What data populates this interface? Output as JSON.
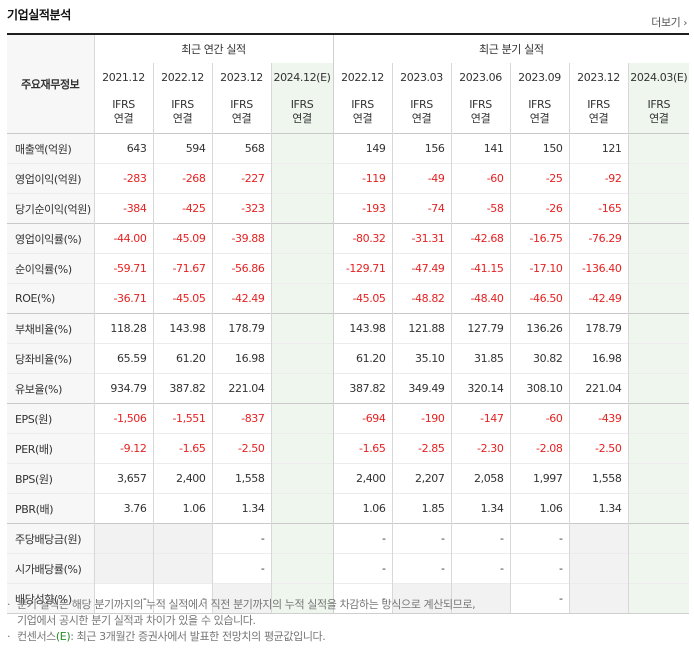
{
  "header": {
    "title": "기업실적분석",
    "more_label": "더보기"
  },
  "table": {
    "row_header_label": "주요재무정보",
    "group_labels": {
      "annual": "최근 연간 실적",
      "quarterly": "최근 분기 실적"
    },
    "annual_periods": [
      "2021.12",
      "2022.12",
      "2023.12",
      "2024.12(E)"
    ],
    "quarterly_periods": [
      "2022.12",
      "2023.03",
      "2023.06",
      "2023.09",
      "2023.12",
      "2024.03(E)"
    ],
    "ifrs_line1": "IFRS",
    "ifrs_line2": "연결",
    "rows": [
      {
        "label": "매출액(억원)",
        "annual": [
          "643",
          "594",
          "568",
          ""
        ],
        "quarterly": [
          "149",
          "156",
          "141",
          "150",
          "121",
          ""
        ]
      },
      {
        "label": "영업이익(억원)",
        "annual": [
          "-283",
          "-268",
          "-227",
          ""
        ],
        "quarterly": [
          "-119",
          "-49",
          "-60",
          "-25",
          "-92",
          ""
        ]
      },
      {
        "label": "당기순이익(억원)",
        "annual": [
          "-384",
          "-425",
          "-323",
          ""
        ],
        "quarterly": [
          "-193",
          "-74",
          "-58",
          "-26",
          "-165",
          ""
        ]
      },
      {
        "label": "영업이익률(%)",
        "annual": [
          "-44.00",
          "-45.09",
          "-39.88",
          ""
        ],
        "quarterly": [
          "-80.32",
          "-31.31",
          "-42.68",
          "-16.75",
          "-76.29",
          ""
        ]
      },
      {
        "label": "순이익률(%)",
        "annual": [
          "-59.71",
          "-71.67",
          "-56.86",
          ""
        ],
        "quarterly": [
          "-129.71",
          "-47.49",
          "-41.15",
          "-17.10",
          "-136.40",
          ""
        ]
      },
      {
        "label": "ROE(%)",
        "annual": [
          "-36.71",
          "-45.05",
          "-42.49",
          ""
        ],
        "quarterly": [
          "-45.05",
          "-48.82",
          "-48.40",
          "-46.50",
          "-42.49",
          ""
        ]
      },
      {
        "label": "부채비율(%)",
        "annual": [
          "118.28",
          "143.98",
          "178.79",
          ""
        ],
        "quarterly": [
          "143.98",
          "121.88",
          "127.79",
          "136.26",
          "178.79",
          ""
        ]
      },
      {
        "label": "당좌비율(%)",
        "annual": [
          "65.59",
          "61.20",
          "16.98",
          ""
        ],
        "quarterly": [
          "61.20",
          "35.10",
          "31.85",
          "30.82",
          "16.98",
          ""
        ]
      },
      {
        "label": "유보율(%)",
        "annual": [
          "934.79",
          "387.82",
          "221.04",
          ""
        ],
        "quarterly": [
          "387.82",
          "349.49",
          "320.14",
          "308.10",
          "221.04",
          ""
        ]
      },
      {
        "label": "EPS(원)",
        "annual": [
          "-1,506",
          "-1,551",
          "-837",
          ""
        ],
        "quarterly": [
          "-694",
          "-190",
          "-147",
          "-60",
          "-439",
          ""
        ]
      },
      {
        "label": "PER(배)",
        "annual": [
          "-9.12",
          "-1.65",
          "-2.50",
          ""
        ],
        "quarterly": [
          "-1.65",
          "-2.85",
          "-2.30",
          "-2.08",
          "-2.50",
          ""
        ]
      },
      {
        "label": "BPS(원)",
        "annual": [
          "3,657",
          "2,400",
          "1,558",
          ""
        ],
        "quarterly": [
          "2,400",
          "2,207",
          "2,058",
          "1,997",
          "1,558",
          ""
        ]
      },
      {
        "label": "PBR(배)",
        "annual": [
          "3.76",
          "1.06",
          "1.34",
          ""
        ],
        "quarterly": [
          "1.06",
          "1.85",
          "1.34",
          "1.06",
          "1.34",
          ""
        ]
      },
      {
        "label": "주당배당금(원)",
        "annual": [
          "",
          "",
          "-",
          ""
        ],
        "quarterly": [
          "-",
          "-",
          "-",
          "-",
          "",
          ""
        ]
      },
      {
        "label": "시가배당률(%)",
        "annual": [
          "",
          "",
          "-",
          ""
        ],
        "quarterly": [
          "-",
          "-",
          "-",
          "-",
          "",
          ""
        ]
      },
      {
        "label": "배당성향(%)",
        "annual": [
          "-",
          "-",
          "",
          ""
        ],
        "quarterly": [
          "-",
          "",
          "",
          "-",
          "",
          ""
        ]
      }
    ]
  },
  "notes": {
    "note1_line1": "분기 실적은 해당 분기까지의 누적 실적에서 직전 분기까지의 누적 실적을 차감하는 방식으로 계산되므로,",
    "note1_line2": "기업에서 공시한 분기 실적과 차이가 있을 수 있습니다.",
    "note2_prefix": "컨센서스",
    "note2_e": "(E)",
    "note2_suffix": ": 최근 3개월간 증권사에서 발표한 전망치의 평균값입니다."
  }
}
